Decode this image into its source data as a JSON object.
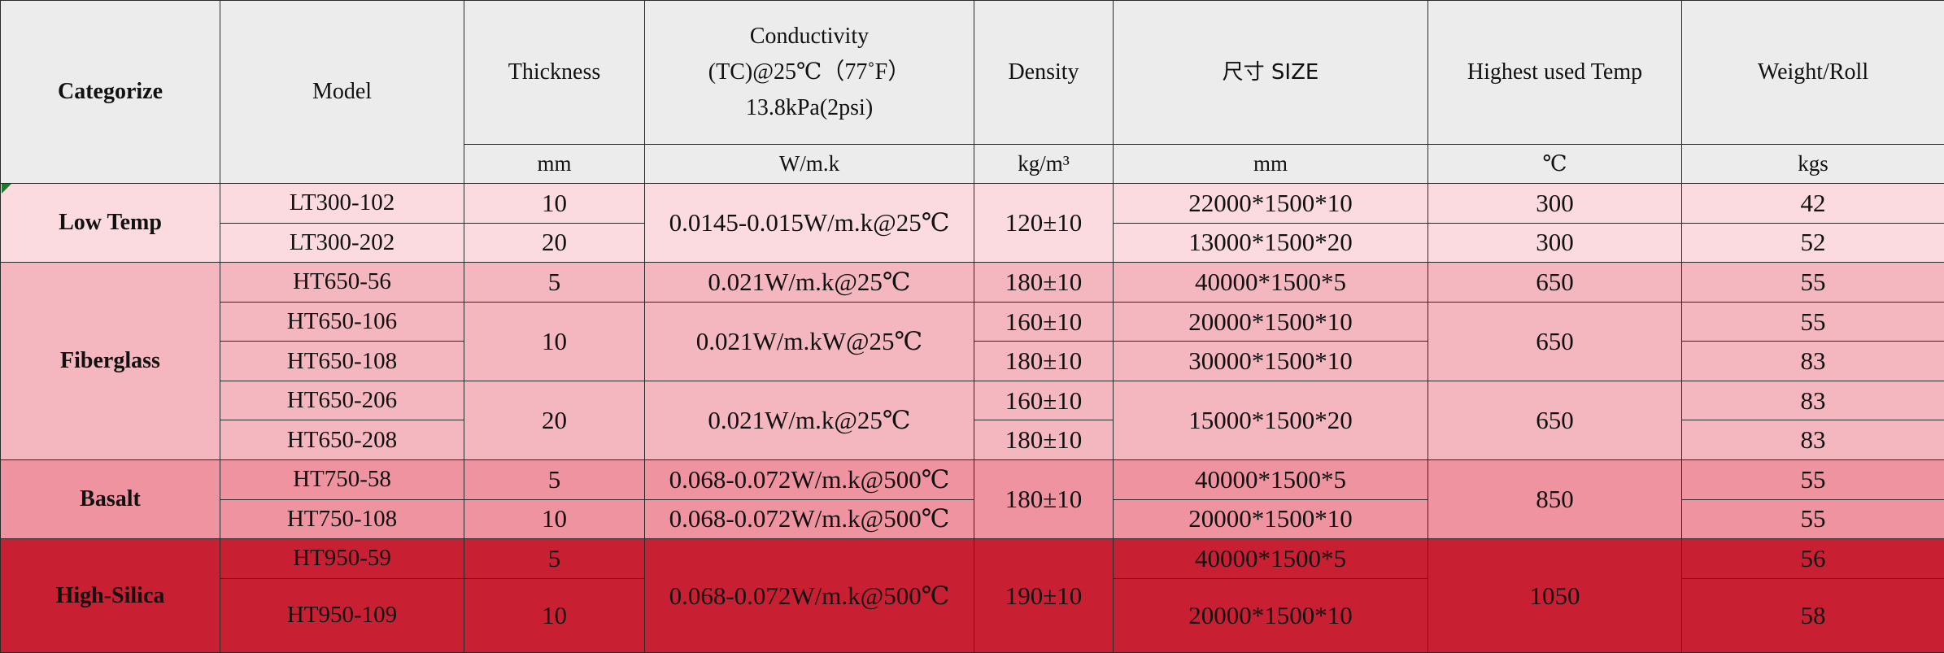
{
  "headers": {
    "categorize": "Categorize",
    "model": "Model",
    "thickness": "Thickness",
    "conductivity_line1": "Conductivity",
    "conductivity_line2": "(TC)@25℃（77˚F）",
    "conductivity_line3": "13.8kPa(2psi)",
    "density": "Density",
    "size": "尺寸 SIZE",
    "highest_temp": "Highest used Temp",
    "weight": "Weight/Roll"
  },
  "units": {
    "thickness": "mm",
    "conductivity": "W/m.k",
    "density": "kg/m³",
    "size": "mm",
    "temp": "℃",
    "weight": "kgs"
  },
  "groups": {
    "low": {
      "category": "Low Temp",
      "conductivity": "0.0145-0.015W/m.k@25℃",
      "density": "120±10",
      "rows": [
        {
          "model": "LT300-102",
          "thickness": "10",
          "size": "22000*1500*10",
          "temp": "300",
          "weight": "42"
        },
        {
          "model": "LT300-202",
          "thickness": "20",
          "size": "13000*1500*20",
          "temp": "300",
          "weight": "52"
        }
      ]
    },
    "fiberglass": {
      "category": "Fiberglass",
      "rows": [
        {
          "model": "HT650-56",
          "thickness": "5",
          "conductivity": "0.021W/m.k@25℃",
          "density": "180±10",
          "size": "40000*1500*5",
          "temp": "650",
          "weight": "55"
        },
        {
          "model": "HT650-106",
          "thickness": "10",
          "conductivity": "0.021W/m.kW@25℃",
          "density": "160±10",
          "size": "20000*1500*10",
          "temp": "650",
          "weight": "55"
        },
        {
          "model": "HT650-108",
          "density": "180±10",
          "size": "30000*1500*10",
          "weight": "83"
        },
        {
          "model": "HT650-206",
          "thickness": "20",
          "conductivity": "0.021W/m.k@25℃",
          "density": "160±10",
          "size": "15000*1500*20",
          "temp": "650",
          "weight": "83"
        },
        {
          "model": "HT650-208",
          "density": "180±10",
          "weight": "83"
        }
      ]
    },
    "basalt": {
      "category": "Basalt",
      "density": "180±10",
      "temp": "850",
      "rows": [
        {
          "model": "HT750-58",
          "thickness": "5",
          "conductivity": "0.068-0.072W/m.k@500℃",
          "size": "40000*1500*5",
          "weight": "55"
        },
        {
          "model": "HT750-108",
          "thickness": "10",
          "conductivity": "0.068-0.072W/m.k@500℃",
          "size": "20000*1500*10",
          "weight": "55"
        }
      ]
    },
    "high_silica": {
      "category": "High-Silica",
      "conductivity": "0.068-0.072W/m.k@500℃",
      "density": "190±10",
      "temp": "1050",
      "rows": [
        {
          "model": "HT950-59",
          "thickness": "5",
          "size": "40000*1500*5",
          "weight": "56"
        },
        {
          "model": "HT950-109",
          "thickness": "10",
          "size": "20000*1500*10",
          "weight": "58"
        }
      ]
    }
  }
}
